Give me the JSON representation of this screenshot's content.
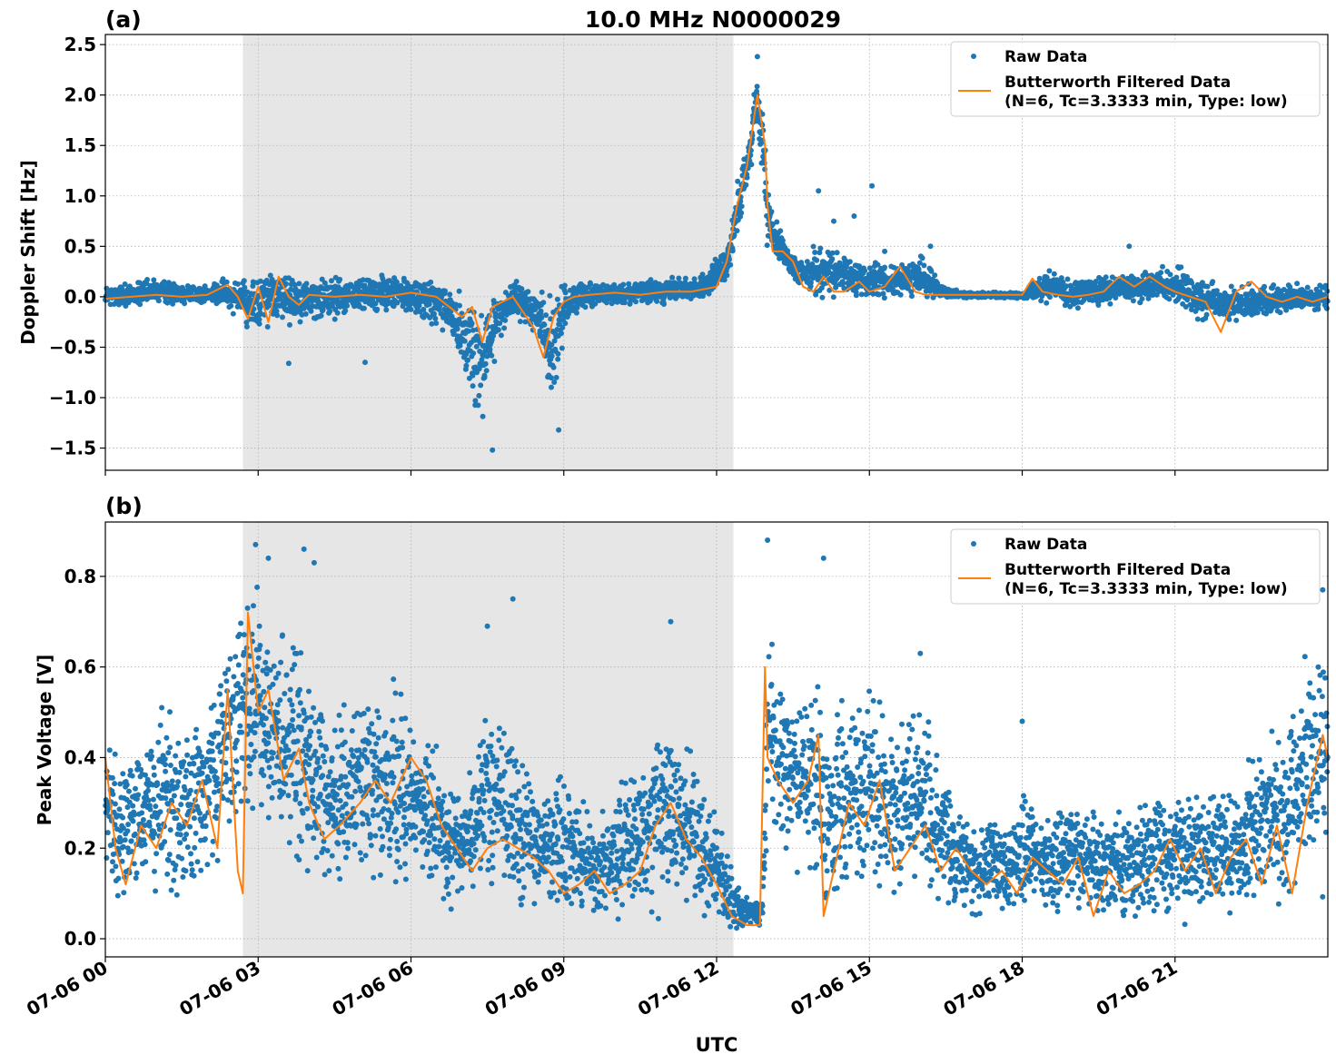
{
  "figure": {
    "title": "10.0 MHz N0000029",
    "xlabel": "UTC",
    "x_ticks": [
      "07-06 00",
      "07-06 03",
      "07-06 06",
      "07-06 09",
      "07-06 12",
      "07-06 15",
      "07-06 18",
      "07-06 21"
    ],
    "colors": {
      "raw": "#1f77b4",
      "filtered": "#ff7f0e",
      "shade": "#e6e6e6",
      "grid": "#b0b0b0"
    }
  },
  "legend": {
    "raw_label": "Raw Data",
    "filtered_label_line1": "Butterworth Filtered Data",
    "filtered_label_line2": "(N=6, Tc=3.3333 min, Type: low)",
    "placement": "top-right"
  },
  "chart_data": [
    {
      "panel": "(a)",
      "type": "scatter",
      "ylabel": "Doppler Shift [Hz]",
      "xlim_hours": [
        0,
        24
      ],
      "ylim": [
        -1.72,
        2.6
      ],
      "y_ticks": [
        -1.5,
        -1.0,
        -0.5,
        0.0,
        0.5,
        1.0,
        1.5,
        2.0,
        2.5
      ],
      "y_tick_labels": [
        "−1.5",
        "−1.0",
        "−0.5",
        "0.0",
        "0.5",
        "1.0",
        "1.5",
        "2.0",
        "2.5"
      ],
      "grid": true,
      "shaded_region_hours": [
        2.7,
        12.33
      ],
      "series": [
        {
          "name": "Butterworth Filtered Data",
          "style": "line",
          "x": [
            0,
            0.5,
            1,
            1.5,
            2,
            2.4,
            2.6,
            2.8,
            3.0,
            3.2,
            3.4,
            3.6,
            3.8,
            4.0,
            4.5,
            5,
            5.5,
            6,
            6.5,
            6.8,
            7.0,
            7.2,
            7.4,
            7.6,
            7.8,
            8.0,
            8.2,
            8.4,
            8.6,
            8.8,
            9.0,
            9.2,
            9.5,
            10,
            10.5,
            11,
            11.5,
            12,
            12.2,
            12.4,
            12.6,
            12.8,
            12.95,
            13.0,
            13.1,
            13.3,
            13.5,
            13.7,
            13.9,
            14.1,
            14.3,
            14.5,
            14.8,
            15,
            15.3,
            15.6,
            15.9,
            16.1,
            16.4,
            16.8,
            17.2,
            17.6,
            18.0,
            18.2,
            18.4,
            18.7,
            19.0,
            19.3,
            19.6,
            19.9,
            20.2,
            20.5,
            20.8,
            21.0,
            21.3,
            21.6,
            21.9,
            22.2,
            22.5,
            22.8,
            23.1,
            23.4,
            23.7,
            24
          ],
          "y": [
            -0.02,
            0.0,
            0.02,
            0.0,
            0.02,
            0.12,
            0.0,
            -0.22,
            0.1,
            -0.25,
            0.2,
            0.0,
            -0.08,
            0.02,
            0.0,
            0.02,
            0.0,
            0.04,
            0.0,
            -0.12,
            -0.2,
            -0.1,
            -0.45,
            -0.1,
            -0.05,
            0.0,
            -0.15,
            -0.3,
            -0.6,
            -0.2,
            -0.05,
            0.0,
            0.02,
            0.04,
            0.02,
            0.05,
            0.05,
            0.1,
            0.35,
            0.9,
            1.3,
            2.0,
            1.5,
            0.9,
            0.45,
            0.45,
            0.35,
            0.1,
            0.05,
            0.2,
            0.05,
            0.05,
            0.15,
            0.05,
            0.1,
            0.3,
            0.05,
            0.02,
            0.02,
            0.02,
            0.02,
            0.02,
            0.02,
            0.18,
            0.05,
            0.02,
            0.0,
            0.02,
            0.05,
            0.2,
            0.1,
            0.2,
            0.1,
            0.05,
            0.0,
            -0.05,
            -0.35,
            0.05,
            0.15,
            0.0,
            -0.05,
            0.0,
            -0.05,
            0.0
          ]
        },
        {
          "name": "Raw Data",
          "style": "points",
          "band_x": [
            0,
            1,
            2,
            2.6,
            2.8,
            3.2,
            4,
            5,
            6,
            6.8,
            7.0,
            7.4,
            7.7,
            8.0,
            8.5,
            8.8,
            9.0,
            9.3,
            10,
            11,
            11.8,
            12.2,
            12.4,
            12.6,
            12.8,
            12.95,
            13.0,
            13.3,
            13.6,
            14.0,
            14.5,
            15,
            15.5,
            16,
            16.5,
            17,
            18,
            18.5,
            19,
            20,
            21,
            21.5,
            22,
            23,
            24
          ],
          "band_low": [
            -0.15,
            -0.1,
            -0.1,
            -0.2,
            -0.4,
            -0.35,
            -0.3,
            -0.2,
            -0.2,
            -0.5,
            -0.8,
            -1.5,
            -0.5,
            -0.2,
            -0.5,
            -1.3,
            -0.4,
            -0.15,
            -0.1,
            -0.1,
            -0.05,
            0.1,
            0.5,
            0.9,
            1.6,
            0.8,
            0.35,
            0.3,
            0.05,
            -0.05,
            -0.05,
            -0.05,
            -0.05,
            -0.03,
            -0.02,
            -0.02,
            -0.02,
            -0.1,
            -0.15,
            -0.1,
            -0.1,
            -0.3,
            -0.3,
            -0.2,
            -0.15
          ],
          "band_high": [
            0.15,
            0.2,
            0.15,
            0.25,
            0.2,
            0.35,
            0.25,
            0.25,
            0.25,
            0.2,
            0.1,
            0.1,
            0.1,
            0.2,
            0.15,
            0.1,
            0.15,
            0.2,
            0.15,
            0.2,
            0.25,
            0.6,
            1.2,
            1.6,
            2.3,
            1.8,
            1.2,
            0.6,
            0.4,
            0.6,
            0.45,
            0.4,
            0.35,
            0.45,
            0.1,
            0.05,
            0.05,
            0.35,
            0.2,
            0.25,
            0.35,
            0.3,
            0.15,
            0.15,
            0.15
          ],
          "outliers": [
            [
              14.0,
              1.05
            ],
            [
              14.3,
              0.75
            ],
            [
              14.7,
              0.8
            ],
            [
              15.05,
              1.1
            ],
            [
              15.3,
              0.45
            ],
            [
              16.2,
              0.5
            ],
            [
              20.1,
              0.5
            ],
            [
              7.6,
              -1.52
            ],
            [
              8.9,
              -1.32
            ],
            [
              12.8,
              2.38
            ],
            [
              3.6,
              -0.66
            ],
            [
              5.1,
              -0.65
            ]
          ]
        }
      ]
    },
    {
      "panel": "(b)",
      "type": "scatter",
      "ylabel": "Peak Voltage [V]",
      "xlim_hours": [
        0,
        24
      ],
      "ylim": [
        -0.04,
        0.92
      ],
      "y_ticks": [
        0.0,
        0.2,
        0.4,
        0.6,
        0.8
      ],
      "y_tick_labels": [
        "0.0",
        "0.2",
        "0.4",
        "0.6",
        "0.8"
      ],
      "grid": true,
      "shaded_region_hours": [
        2.7,
        12.33
      ],
      "series": [
        {
          "name": "Butterworth Filtered Data",
          "style": "line",
          "x": [
            0,
            0.2,
            0.4,
            0.7,
            1.0,
            1.3,
            1.6,
            1.9,
            2.2,
            2.4,
            2.6,
            2.7,
            2.8,
            3.0,
            3.2,
            3.5,
            3.8,
            4.0,
            4.3,
            4.6,
            5.0,
            5.3,
            5.6,
            6.0,
            6.3,
            6.6,
            6.9,
            7.2,
            7.5,
            7.8,
            8.1,
            8.4,
            8.7,
            9.0,
            9.3,
            9.6,
            9.9,
            10.2,
            10.5,
            10.8,
            11.1,
            11.4,
            11.7,
            12.0,
            12.3,
            12.6,
            12.85,
            12.95,
            13.0,
            13.2,
            13.5,
            13.8,
            14.0,
            14.1,
            14.3,
            14.6,
            14.9,
            15.2,
            15.5,
            15.8,
            16.1,
            16.4,
            16.7,
            17.0,
            17.3,
            17.6,
            17.9,
            18.2,
            18.5,
            18.8,
            19.1,
            19.4,
            19.7,
            20.0,
            20.3,
            20.6,
            20.9,
            21.2,
            21.5,
            21.8,
            22.1,
            22.4,
            22.7,
            23.0,
            23.3,
            23.6,
            23.9,
            24.0
          ],
          "y": [
            0.4,
            0.2,
            0.12,
            0.25,
            0.2,
            0.3,
            0.25,
            0.35,
            0.2,
            0.55,
            0.15,
            0.1,
            0.72,
            0.5,
            0.55,
            0.35,
            0.42,
            0.3,
            0.22,
            0.25,
            0.3,
            0.35,
            0.3,
            0.4,
            0.35,
            0.25,
            0.2,
            0.15,
            0.2,
            0.22,
            0.2,
            0.18,
            0.15,
            0.1,
            0.12,
            0.15,
            0.1,
            0.12,
            0.15,
            0.25,
            0.3,
            0.22,
            0.18,
            0.12,
            0.05,
            0.03,
            0.03,
            0.6,
            0.4,
            0.35,
            0.3,
            0.35,
            0.45,
            0.05,
            0.15,
            0.3,
            0.25,
            0.35,
            0.15,
            0.2,
            0.25,
            0.15,
            0.2,
            0.15,
            0.12,
            0.15,
            0.1,
            0.18,
            0.15,
            0.12,
            0.18,
            0.05,
            0.15,
            0.1,
            0.12,
            0.15,
            0.22,
            0.15,
            0.2,
            0.1,
            0.18,
            0.22,
            0.12,
            0.25,
            0.1,
            0.3,
            0.45,
            0.4
          ]
        },
        {
          "name": "Raw Data",
          "style": "points",
          "band_x": [
            0,
            0.5,
            1,
            1.5,
            2,
            2.4,
            2.6,
            2.75,
            3.0,
            3.3,
            3.6,
            4.0,
            4.5,
            5.0,
            5.5,
            6.0,
            6.5,
            7.0,
            7.5,
            8.0,
            8.5,
            9.0,
            9.5,
            10.0,
            10.5,
            11.0,
            11.5,
            12.0,
            12.5,
            12.9,
            13.0,
            13.3,
            13.7,
            14.0,
            14.1,
            14.5,
            15.0,
            15.5,
            16.0,
            16.5,
            17.0,
            17.5,
            18.0,
            18.5,
            19.0,
            19.5,
            20.0,
            20.5,
            21.0,
            21.5,
            22.0,
            22.5,
            23.0,
            23.5,
            24.0
          ],
          "band_low": [
            0.08,
            0.05,
            0.05,
            0.05,
            0.05,
            0.1,
            0.15,
            0.2,
            0.2,
            0.15,
            0.1,
            0.08,
            0.08,
            0.08,
            0.08,
            0.08,
            0.05,
            0.05,
            0.05,
            0.05,
            0.04,
            0.03,
            0.03,
            0.02,
            0.03,
            0.03,
            0.02,
            0.01,
            0.01,
            0.02,
            0.15,
            0.15,
            0.1,
            0.05,
            0.01,
            0.05,
            0.05,
            0.03,
            0.03,
            0.02,
            0.02,
            0.02,
            0.02,
            0.02,
            0.02,
            0.02,
            0.02,
            0.02,
            0.02,
            0.02,
            0.02,
            0.02,
            0.02,
            0.05,
            0.08
          ],
          "band_high": [
            0.5,
            0.45,
            0.55,
            0.55,
            0.6,
            0.7,
            0.85,
            0.85,
            0.85,
            0.75,
            0.8,
            0.6,
            0.55,
            0.6,
            0.6,
            0.55,
            0.45,
            0.35,
            0.55,
            0.5,
            0.35,
            0.4,
            0.3,
            0.35,
            0.45,
            0.55,
            0.45,
            0.3,
            0.1,
            0.1,
            0.85,
            0.6,
            0.6,
            0.7,
            0.5,
            0.55,
            0.65,
            0.5,
            0.6,
            0.4,
            0.3,
            0.3,
            0.35,
            0.3,
            0.35,
            0.3,
            0.3,
            0.35,
            0.35,
            0.35,
            0.35,
            0.45,
            0.5,
            0.65,
            0.75
          ],
          "outliers": [
            [
              2.95,
              0.87
            ],
            [
              3.2,
              0.84
            ],
            [
              3.9,
              0.86
            ],
            [
              4.1,
              0.83
            ],
            [
              7.5,
              0.69
            ],
            [
              8.0,
              0.75
            ],
            [
              11.1,
              0.7
            ],
            [
              13.0,
              0.88
            ],
            [
              14.1,
              0.84
            ],
            [
              16.0,
              0.63
            ],
            [
              18.0,
              0.48
            ],
            [
              23.9,
              0.77
            ]
          ]
        }
      ]
    }
  ]
}
